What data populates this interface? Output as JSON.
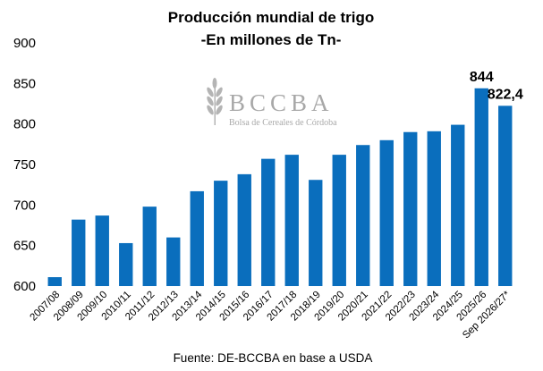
{
  "chart_data": {
    "type": "bar",
    "title": "Producción mundial de trigo",
    "subtitle": "-En millones de Tn-",
    "categories": [
      "2007/08",
      "2008/09",
      "2009/10",
      "2010/11",
      "2011/12",
      "2012/13",
      "2013/14",
      "2014/15",
      "2015/16",
      "2016/17",
      "2017/18",
      "2018/19",
      "2019/20",
      "2020/21",
      "2021/22",
      "2022/23",
      "2023/24",
      "2024/25",
      "2025/26",
      "Sep 2026/27*"
    ],
    "values": [
      611,
      682,
      687,
      653,
      698,
      660,
      717,
      730,
      738,
      757,
      762,
      731,
      762,
      774,
      780,
      790,
      791,
      799,
      844,
      822.4
    ],
    "data_labels": [
      {
        "index": 18,
        "text": "844"
      },
      {
        "index": 19,
        "text": "822,4"
      }
    ],
    "ylim": [
      600,
      900
    ],
    "yticks": [
      600,
      650,
      700,
      750,
      800,
      850,
      900
    ],
    "xlabel": "",
    "ylabel": "",
    "grid": false,
    "legend": "none",
    "bar_color": "#0a6ebd"
  },
  "watermark": {
    "name": "BCCBA",
    "subtitle": "Bolsa de Cereales de Córdoba"
  },
  "source": "Fuente: DE-BCCBA en base a USDA"
}
